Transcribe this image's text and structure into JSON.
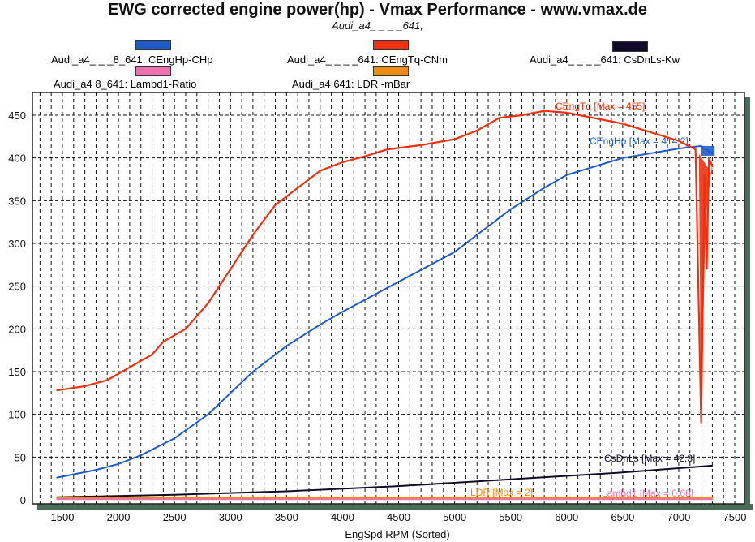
{
  "title": "EWG corrected engine power(hp) - Vmax Performance - www.vmax.de",
  "subtitle": "Audi_a4_   _ _ _641,",
  "legend": [
    {
      "label": "Audi_a4_   _ _8_641: CEngHp-CHp",
      "color": "#1e5bc6"
    },
    {
      "label": "Audi_a4_   _ _ _641: CEngTq-CNm",
      "color": "#f03010"
    },
    {
      "label": "Audi_a4_   _ _ _641: CsDnLs-Kw",
      "color": "#120a2a"
    },
    {
      "label": "Audi_a4      8_641: Lambd1-Ratio",
      "color": "#f070b0"
    },
    {
      "label": "Audi_a4         641: LDR   -mBar",
      "color": "#f08a10"
    }
  ],
  "chart_data": {
    "type": "line",
    "title": "EWG corrected engine power(hp) - Vmax Performance - www.vmax.de",
    "xlabel": "EngSpd RPM    (Sorted)",
    "ylabel": "",
    "xlim": [
      1000,
      7750
    ],
    "ylim": [
      0,
      470
    ],
    "xticks": [
      1500,
      2000,
      2500,
      3000,
      3500,
      4000,
      4500,
      5000,
      5500,
      6000,
      6500,
      7000,
      7500
    ],
    "yticks": [
      0,
      50,
      100,
      150,
      200,
      250,
      300,
      350,
      400,
      450
    ],
    "grid": true,
    "series": [
      {
        "name": "CEngHp",
        "color": "#1e5bc6",
        "annotation": "CEngHp [Max = 414.2]",
        "x": [
          1450,
          1800,
          2000,
          2200,
          2500,
          2800,
          3000,
          3200,
          3500,
          3800,
          4000,
          4500,
          5000,
          5200,
          5500,
          5800,
          6000,
          6500,
          7000,
          7200,
          7300
        ],
        "y": [
          26,
          35,
          42,
          52,
          72,
          100,
          125,
          150,
          180,
          205,
          220,
          255,
          290,
          310,
          340,
          365,
          380,
          400,
          411,
          414,
          405
        ]
      },
      {
        "name": "CEngTq",
        "color": "#f03010",
        "annotation": "CEngTq [Max = 455]",
        "x": [
          1450,
          1700,
          1900,
          2100,
          2300,
          2400,
          2600,
          2800,
          3000,
          3200,
          3400,
          3600,
          3800,
          4000,
          4200,
          4400,
          4700,
          5000,
          5200,
          5400,
          5600,
          5800,
          6000,
          6500,
          7000,
          7150,
          7200,
          7230,
          7250,
          7270,
          7300
        ],
        "y": [
          128,
          133,
          140,
          155,
          170,
          185,
          200,
          230,
          270,
          310,
          345,
          365,
          385,
          395,
          402,
          410,
          415,
          422,
          432,
          447,
          450,
          455,
          453,
          440,
          420,
          410,
          90,
          380,
          270,
          400,
          390
        ]
      },
      {
        "name": "CsDnLs",
        "color": "#120a2a",
        "annotation": "CsDnLs [Max = 42.3]",
        "x": [
          1450,
          2500,
          3500,
          4500,
          5500,
          6500,
          7300
        ],
        "y": [
          3,
          6,
          10,
          16,
          24,
          32,
          40
        ]
      },
      {
        "name": "LDR",
        "color": "#f08a10",
        "annotation": "LDR   [Max = 2]",
        "x": [
          1450,
          7300
        ],
        "y": [
          2,
          2
        ]
      },
      {
        "name": "Lambd1",
        "color": "#f070b0",
        "annotation": "Lambd1 [Max = 0.68]",
        "x": [
          1450,
          7300
        ],
        "y": [
          0.68,
          0.68
        ]
      }
    ]
  }
}
